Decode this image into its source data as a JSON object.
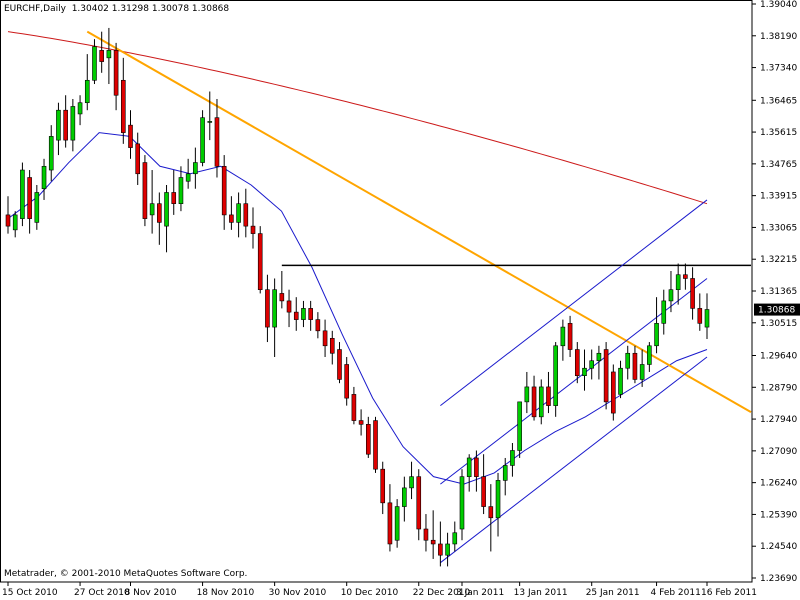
{
  "header": {
    "symbol": "EURCHF,Daily",
    "ohlc": "1.30402 1.31298 1.30078 1.30868"
  },
  "copyright": "Metatrader, © 2001-2010 MetaQuotes Software Corp.",
  "colors": {
    "bull": "#00cc00",
    "bear": "#dd0000",
    "ma_fast": "#1a1acc",
    "ma_slow": "#cc1a1a",
    "trendline": "#ffa500",
    "resistance": "#000000",
    "channel": "#1a1acc"
  },
  "chart_data": {
    "type": "candlestick",
    "price_axis": {
      "min": 1.2369,
      "max": 1.3904,
      "ticks": [
        "1.39040",
        "1.38190",
        "1.37340",
        "1.36465",
        "1.35615",
        "1.34765",
        "1.33915",
        "1.33065",
        "1.32215",
        "1.31365",
        "1.30515",
        "1.29640",
        "1.28790",
        "1.27940",
        "1.27090",
        "1.26240",
        "1.25390",
        "1.24540",
        "1.23690"
      ]
    },
    "last_price": "1.30868",
    "date_labels": [
      "15 Oct 2010",
      "27 Oct 2010",
      "8 Nov 2010",
      "18 Nov 2010",
      "30 Nov 2010",
      "10 Dec 2010",
      "22 Dec 2010",
      "3 Jan 2011",
      "13 Jan 2011",
      "25 Jan 2011",
      "4 Feb 2011",
      "16 Feb 2011"
    ],
    "candles": [
      {
        "date": "15 Oct 2010",
        "o": 1.334,
        "h": 1.339,
        "l": 1.329,
        "c": 1.331
      },
      {
        "o": 1.33,
        "h": 1.335,
        "l": 1.328,
        "c": 1.334
      },
      {
        "o": 1.333,
        "h": 1.348,
        "l": 1.331,
        "c": 1.346
      },
      {
        "o": 1.344,
        "h": 1.346,
        "l": 1.329,
        "c": 1.333
      },
      {
        "o": 1.332,
        "h": 1.342,
        "l": 1.33,
        "c": 1.34
      },
      {
        "o": 1.341,
        "h": 1.349,
        "l": 1.338,
        "c": 1.347
      },
      {
        "o": 1.346,
        "h": 1.358,
        "l": 1.343,
        "c": 1.355
      },
      {
        "o": 1.354,
        "h": 1.364,
        "l": 1.35,
        "c": 1.362
      },
      {
        "o": 1.362,
        "h": 1.366,
        "l": 1.352,
        "c": 1.354
      },
      {
        "o": 1.354,
        "h": 1.365,
        "l": 1.351,
        "c": 1.363
      },
      {
        "date": "27 Oct 2010",
        "o": 1.361,
        "h": 1.366,
        "l": 1.358,
        "c": 1.364
      },
      {
        "o": 1.364,
        "h": 1.377,
        "l": 1.362,
        "c": 1.37
      },
      {
        "o": 1.37,
        "h": 1.381,
        "l": 1.369,
        "c": 1.379
      },
      {
        "o": 1.378,
        "h": 1.383,
        "l": 1.372,
        "c": 1.375
      },
      {
        "o": 1.376,
        "h": 1.384,
        "l": 1.369,
        "c": 1.378
      },
      {
        "o": 1.378,
        "h": 1.38,
        "l": 1.362,
        "c": 1.366
      },
      {
        "o": 1.37,
        "h": 1.376,
        "l": 1.353,
        "c": 1.356
      },
      {
        "date": "8 Nov 2010",
        "o": 1.358,
        "h": 1.362,
        "l": 1.349,
        "c": 1.352
      },
      {
        "o": 1.353,
        "h": 1.356,
        "l": 1.342,
        "c": 1.345
      },
      {
        "o": 1.348,
        "h": 1.35,
        "l": 1.331,
        "c": 1.333
      },
      {
        "o": 1.334,
        "h": 1.346,
        "l": 1.329,
        "c": 1.337
      },
      {
        "o": 1.337,
        "h": 1.34,
        "l": 1.326,
        "c": 1.332
      },
      {
        "o": 1.331,
        "h": 1.342,
        "l": 1.324,
        "c": 1.34
      },
      {
        "o": 1.34,
        "h": 1.346,
        "l": 1.334,
        "c": 1.337
      },
      {
        "o": 1.337,
        "h": 1.347,
        "l": 1.335,
        "c": 1.344
      },
      {
        "o": 1.343,
        "h": 1.349,
        "l": 1.341,
        "c": 1.345
      },
      {
        "o": 1.345,
        "h": 1.352,
        "l": 1.341,
        "c": 1.348
      },
      {
        "date": "18 Nov 2010",
        "o": 1.348,
        "h": 1.362,
        "l": 1.347,
        "c": 1.36
      },
      {
        "o": 1.359,
        "h": 1.367,
        "l": 1.354,
        "c": 1.359
      },
      {
        "o": 1.36,
        "h": 1.365,
        "l": 1.344,
        "c": 1.347
      },
      {
        "o": 1.347,
        "h": 1.35,
        "l": 1.33,
        "c": 1.334
      },
      {
        "o": 1.334,
        "h": 1.339,
        "l": 1.33,
        "c": 1.332
      },
      {
        "o": 1.332,
        "h": 1.34,
        "l": 1.328,
        "c": 1.337
      },
      {
        "o": 1.337,
        "h": 1.341,
        "l": 1.328,
        "c": 1.331
      },
      {
        "o": 1.331,
        "h": 1.336,
        "l": 1.325,
        "c": 1.329
      },
      {
        "o": 1.329,
        "h": 1.331,
        "l": 1.313,
        "c": 1.314
      },
      {
        "o": 1.314,
        "h": 1.318,
        "l": 1.3,
        "c": 1.304
      },
      {
        "date": "30 Nov 2010",
        "o": 1.304,
        "h": 1.317,
        "l": 1.296,
        "c": 1.314
      },
      {
        "o": 1.313,
        "h": 1.319,
        "l": 1.309,
        "c": 1.311
      },
      {
        "o": 1.311,
        "h": 1.314,
        "l": 1.304,
        "c": 1.308
      },
      {
        "o": 1.308,
        "h": 1.312,
        "l": 1.303,
        "c": 1.306
      },
      {
        "o": 1.306,
        "h": 1.311,
        "l": 1.304,
        "c": 1.309
      },
      {
        "o": 1.309,
        "h": 1.311,
        "l": 1.303,
        "c": 1.306
      },
      {
        "o": 1.306,
        "h": 1.308,
        "l": 1.301,
        "c": 1.303
      },
      {
        "o": 1.303,
        "h": 1.306,
        "l": 1.296,
        "c": 1.299
      },
      {
        "o": 1.301,
        "h": 1.303,
        "l": 1.294,
        "c": 1.297
      },
      {
        "o": 1.298,
        "h": 1.3,
        "l": 1.289,
        "c": 1.29
      },
      {
        "date": "10 Dec 2010",
        "o": 1.294,
        "h": 1.296,
        "l": 1.283,
        "c": 1.285
      },
      {
        "o": 1.286,
        "h": 1.288,
        "l": 1.278,
        "c": 1.279
      },
      {
        "o": 1.279,
        "h": 1.282,
        "l": 1.275,
        "c": 1.278
      },
      {
        "o": 1.278,
        "h": 1.28,
        "l": 1.269,
        "c": 1.27
      },
      {
        "o": 1.279,
        "h": 1.28,
        "l": 1.265,
        "c": 1.266
      },
      {
        "o": 1.266,
        "h": 1.268,
        "l": 1.254,
        "c": 1.257
      },
      {
        "o": 1.257,
        "h": 1.262,
        "l": 1.244,
        "c": 1.246
      },
      {
        "o": 1.247,
        "h": 1.258,
        "l": 1.245,
        "c": 1.256
      },
      {
        "o": 1.256,
        "h": 1.264,
        "l": 1.252,
        "c": 1.261
      },
      {
        "o": 1.261,
        "h": 1.268,
        "l": 1.258,
        "c": 1.264
      },
      {
        "date": "22 Dec 2010",
        "o": 1.264,
        "h": 1.266,
        "l": 1.247,
        "c": 1.25
      },
      {
        "o": 1.25,
        "h": 1.254,
        "l": 1.244,
        "c": 1.247
      },
      {
        "o": 1.247,
        "h": 1.255,
        "l": 1.242,
        "c": 1.246
      },
      {
        "o": 1.246,
        "h": 1.252,
        "l": 1.24,
        "c": 1.243
      },
      {
        "o": 1.243,
        "h": 1.249,
        "l": 1.24,
        "c": 1.246
      },
      {
        "o": 1.246,
        "h": 1.252,
        "l": 1.244,
        "c": 1.249
      },
      {
        "date": "3 Jan 2011",
        "o": 1.25,
        "h": 1.266,
        "l": 1.247,
        "c": 1.264
      },
      {
        "o": 1.264,
        "h": 1.27,
        "l": 1.26,
        "c": 1.269
      },
      {
        "o": 1.269,
        "h": 1.271,
        "l": 1.26,
        "c": 1.264
      },
      {
        "o": 1.264,
        "h": 1.27,
        "l": 1.254,
        "c": 1.256
      },
      {
        "o": 1.256,
        "h": 1.262,
        "l": 1.244,
        "c": 1.253
      },
      {
        "o": 1.253,
        "h": 1.265,
        "l": 1.248,
        "c": 1.263
      },
      {
        "o": 1.263,
        "h": 1.269,
        "l": 1.259,
        "c": 1.267
      },
      {
        "o": 1.267,
        "h": 1.273,
        "l": 1.264,
        "c": 1.271
      },
      {
        "date": "13 Jan 2011",
        "o": 1.271,
        "h": 1.284,
        "l": 1.269,
        "c": 1.284
      },
      {
        "o": 1.284,
        "h": 1.292,
        "l": 1.281,
        "c": 1.288
      },
      {
        "o": 1.288,
        "h": 1.291,
        "l": 1.279,
        "c": 1.28
      },
      {
        "o": 1.28,
        "h": 1.29,
        "l": 1.278,
        "c": 1.288
      },
      {
        "o": 1.288,
        "h": 1.292,
        "l": 1.281,
        "c": 1.283
      },
      {
        "o": 1.283,
        "h": 1.3,
        "l": 1.28,
        "c": 1.299
      },
      {
        "o": 1.299,
        "h": 1.306,
        "l": 1.295,
        "c": 1.304
      },
      {
        "o": 1.305,
        "h": 1.307,
        "l": 1.296,
        "c": 1.298
      },
      {
        "o": 1.298,
        "h": 1.3,
        "l": 1.289,
        "c": 1.291
      },
      {
        "o": 1.291,
        "h": 1.298,
        "l": 1.287,
        "c": 1.293
      },
      {
        "date": "25 Jan 2011",
        "o": 1.293,
        "h": 1.298,
        "l": 1.29,
        "c": 1.295
      },
      {
        "o": 1.295,
        "h": 1.299,
        "l": 1.29,
        "c": 1.297
      },
      {
        "o": 1.298,
        "h": 1.3,
        "l": 1.282,
        "c": 1.284
      },
      {
        "o": 1.292,
        "h": 1.294,
        "l": 1.279,
        "c": 1.281
      },
      {
        "o": 1.286,
        "h": 1.295,
        "l": 1.285,
        "c": 1.293
      },
      {
        "o": 1.293,
        "h": 1.299,
        "l": 1.29,
        "c": 1.297
      },
      {
        "o": 1.297,
        "h": 1.299,
        "l": 1.289,
        "c": 1.29
      },
      {
        "o": 1.29,
        "h": 1.298,
        "l": 1.288,
        "c": 1.294
      },
      {
        "o": 1.294,
        "h": 1.3,
        "l": 1.292,
        "c": 1.299
      },
      {
        "date": "4 Feb 2011",
        "o": 1.299,
        "h": 1.312,
        "l": 1.297,
        "c": 1.305
      },
      {
        "o": 1.305,
        "h": 1.314,
        "l": 1.302,
        "c": 1.311
      },
      {
        "o": 1.311,
        "h": 1.319,
        "l": 1.308,
        "c": 1.314
      },
      {
        "o": 1.314,
        "h": 1.321,
        "l": 1.31,
        "c": 1.318
      },
      {
        "o": 1.318,
        "h": 1.321,
        "l": 1.314,
        "c": 1.317
      },
      {
        "o": 1.317,
        "h": 1.32,
        "l": 1.306,
        "c": 1.309
      },
      {
        "o": 1.309,
        "h": 1.313,
        "l": 1.303,
        "c": 1.305
      },
      {
        "date": "16 Feb 2011",
        "o": 1.304,
        "h": 1.313,
        "l": 1.3008,
        "c": 1.3087
      }
    ],
    "overlays": {
      "ma_slow": {
        "from": 1.383,
        "to": 1.337
      },
      "ma_fast_points": [
        1.333,
        1.339,
        1.348,
        1.356,
        1.355,
        1.347,
        1.345,
        1.347,
        1.342,
        1.335,
        1.32,
        1.302,
        1.285,
        1.272,
        1.264,
        1.262,
        1.265,
        1.271,
        1.276,
        1.28,
        1.285,
        1.29,
        1.295,
        1.298
      ],
      "trendline": {
        "from_index": 11,
        "from_price": 1.383,
        "to_price": 1.288
      },
      "resistance": {
        "from_index": 38,
        "price": 1.3205
      },
      "channel": {
        "from_index": 60,
        "lower_from": 1.241,
        "lower_to": 1.296,
        "width": 0.042
      }
    }
  }
}
